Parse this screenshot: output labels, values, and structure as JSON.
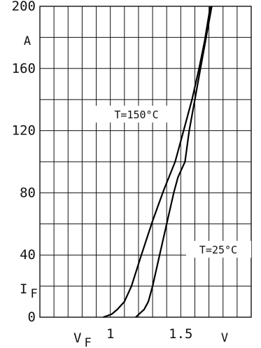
{
  "chart_data": {
    "type": "line",
    "xlabel": "V_F",
    "ylabel": "I_F",
    "x_unit": "V",
    "y_unit": "A",
    "xlim": [
      0.5,
      2.0
    ],
    "ylim": [
      0,
      200
    ],
    "x_ticks": [
      {
        "value": 1.0,
        "label": "1"
      },
      {
        "value": 1.5,
        "label": "1.5"
      }
    ],
    "y_ticks": [
      {
        "value": 0,
        "label": "0"
      },
      {
        "value": 40,
        "label": "40"
      },
      {
        "value": 80,
        "label": "80"
      },
      {
        "value": 120,
        "label": "120"
      },
      {
        "value": 160,
        "label": "160"
      },
      {
        "value": 200,
        "label": "200"
      }
    ],
    "x_grid_step": 0.1,
    "y_grid_step": 20,
    "grid": true,
    "series": [
      {
        "name": "T=150°C",
        "x": [
          0.95,
          1.01,
          1.05,
          1.1,
          1.15,
          1.22,
          1.3,
          1.38,
          1.46,
          1.52,
          1.58,
          1.63,
          1.67,
          1.71
        ],
        "y": [
          0,
          2,
          5,
          10,
          20,
          40,
          62,
          82,
          100,
          120,
          140,
          160,
          178,
          200
        ]
      },
      {
        "name": "T=25°C",
        "x": [
          1.18,
          1.24,
          1.27,
          1.3,
          1.35,
          1.4,
          1.45,
          1.48,
          1.53,
          1.56,
          1.6,
          1.64,
          1.68,
          1.72
        ],
        "y": [
          0,
          5,
          10,
          20,
          40,
          60,
          80,
          90,
          100,
          120,
          140,
          160,
          180,
          200
        ]
      }
    ]
  }
}
